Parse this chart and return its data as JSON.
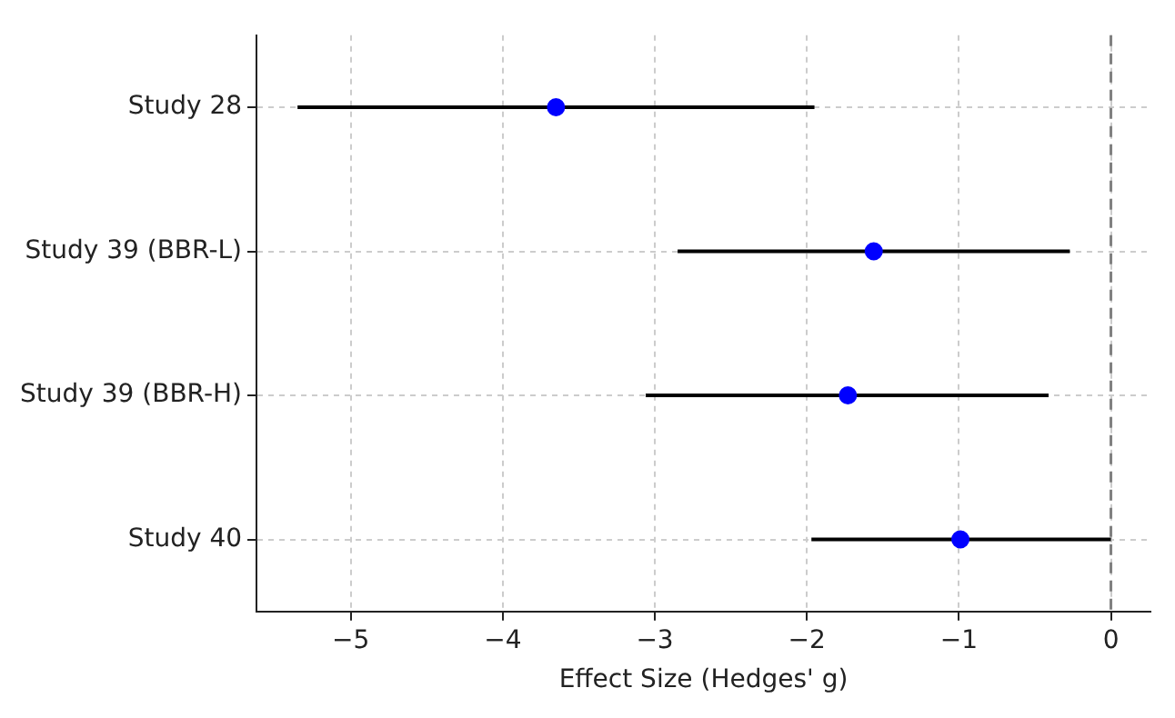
{
  "chart_data": {
    "type": "scatter",
    "orientation": "horizontal",
    "xlabel": "Effect Size (Hedges' g)",
    "categories": [
      "Study 28",
      "Study 39 (BBR-L)",
      "Study 39 (BBR-H)",
      "Study 40"
    ],
    "color": "#0000ff",
    "values": [
      -3.65,
      -1.56,
      -1.73,
      -0.99
    ],
    "errors": [
      [
        -5.35,
        -1.95
      ],
      [
        -2.85,
        -0.27
      ],
      [
        -3.06,
        -0.41
      ],
      [
        -1.97,
        0.0
      ]
    ],
    "xlim": [
      -5.62,
      0.26
    ],
    "xticks": [
      {
        "value": -5,
        "label": "−5"
      },
      {
        "value": -4,
        "label": "−4"
      },
      {
        "value": -3,
        "label": "−3"
      },
      {
        "value": -2,
        "label": "−2"
      },
      {
        "value": -1,
        "label": "−1"
      },
      0
    ],
    "ref_lines": [
      {
        "axis": "x",
        "value": 0,
        "color": "#808080",
        "line_style": "dashed"
      }
    ],
    "grid": true,
    "legend": false,
    "marker": "circle"
  }
}
